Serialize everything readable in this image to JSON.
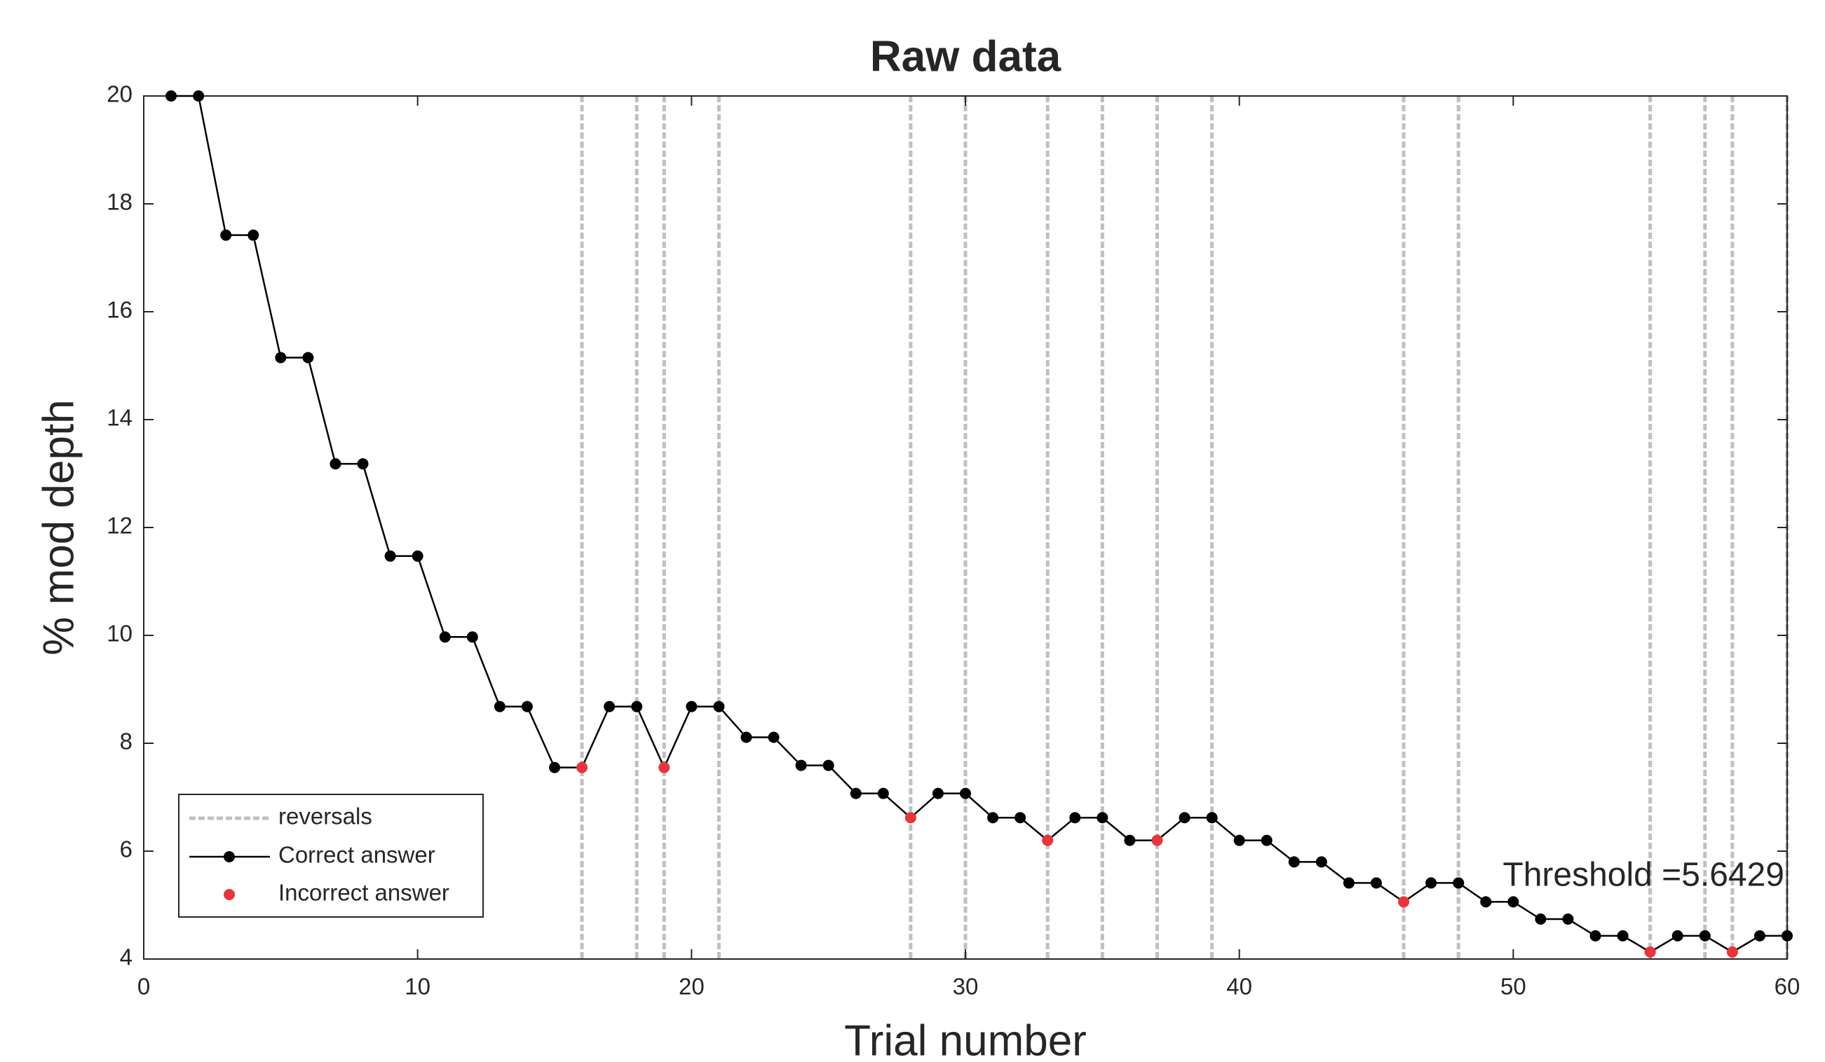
{
  "chart_data": {
    "type": "line",
    "title": "Raw data",
    "x_label": "Trial number",
    "y_label": "% mod depth",
    "x": [
      1,
      2,
      3,
      4,
      5,
      6,
      7,
      8,
      9,
      10,
      11,
      12,
      13,
      14,
      15,
      16,
      17,
      18,
      19,
      20,
      21,
      22,
      23,
      24,
      25,
      26,
      27,
      28,
      29,
      30,
      31,
      32,
      33,
      34,
      35,
      36,
      37,
      38,
      39,
      40,
      41,
      42,
      43,
      44,
      45,
      46,
      47,
      48,
      49,
      50,
      51,
      52,
      53,
      54,
      55,
      56,
      57,
      58,
      59,
      60
    ],
    "series": [
      {
        "name": "Correct answer",
        "color": "#000000",
        "values": [
          20,
          20,
          17.42,
          17.42,
          15.15,
          15.15,
          13.18,
          13.18,
          11.47,
          11.47,
          9.97,
          9.97,
          8.68,
          8.68,
          7.55,
          7.55,
          8.68,
          8.68,
          7.55,
          8.68,
          8.68,
          8.11,
          8.11,
          7.59,
          7.59,
          7.07,
          7.07,
          6.62,
          7.07,
          7.07,
          6.62,
          6.62,
          6.2,
          6.62,
          6.62,
          6.2,
          6.2,
          6.62,
          6.62,
          6.2,
          6.2,
          5.8,
          5.8,
          5.41,
          5.41,
          5.06,
          5.41,
          5.41,
          5.06,
          5.06,
          4.74,
          4.74,
          4.43,
          4.43,
          4.13,
          4.43,
          4.43,
          4.13,
          4.43,
          4.43
        ]
      },
      {
        "name": "Incorrect answer",
        "color": "#e8343a",
        "values": [
          null,
          null,
          null,
          null,
          null,
          null,
          null,
          null,
          null,
          null,
          null,
          null,
          null,
          null,
          null,
          7.55,
          null,
          null,
          7.55,
          null,
          null,
          null,
          null,
          null,
          null,
          null,
          null,
          6.62,
          null,
          null,
          null,
          null,
          6.2,
          null,
          null,
          null,
          6.2,
          null,
          null,
          null,
          null,
          null,
          null,
          null,
          null,
          5.06,
          null,
          null,
          null,
          null,
          null,
          null,
          null,
          null,
          4.13,
          null,
          null,
          4.13,
          null,
          null
        ]
      }
    ],
    "reversals": {
      "name": "reversals",
      "color": "#c0c0c0",
      "x": [
        16,
        18,
        19,
        21,
        28,
        30,
        33,
        35,
        37,
        39,
        46,
        48,
        55,
        57,
        58,
        60
      ]
    },
    "annotation": "Threshold =5.6429",
    "xlim": [
      0,
      60
    ],
    "xticks": [
      0,
      10,
      20,
      30,
      40,
      50,
      60
    ],
    "ylim": [
      4,
      20
    ],
    "yticks": [
      4,
      6,
      8,
      10,
      12,
      14,
      16,
      18,
      20
    ],
    "grid": false,
    "legend_position": "lower left"
  }
}
